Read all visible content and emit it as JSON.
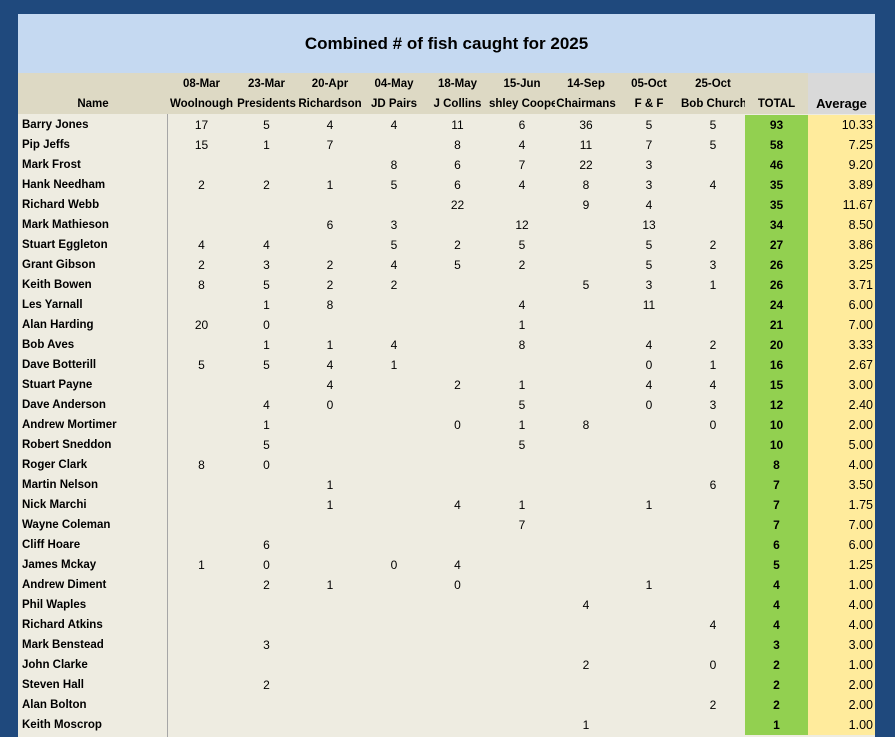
{
  "title": "Combined # of fish caught for 2025",
  "table": {
    "dates": [
      "08-Mar",
      "23-Mar",
      "20-Apr",
      "04-May",
      "18-May",
      "15-Jun",
      "14-Sep",
      "05-Oct",
      "25-Oct"
    ],
    "events": [
      "Woolnough",
      "Presidents",
      "Richardson",
      "JD Pairs",
      "J Collins",
      "shley Coope",
      "Chairmans",
      "F & F",
      "Bob Church"
    ],
    "name_header": "Name",
    "total_header": "TOTAL",
    "average_header": "Average",
    "rows": [
      {
        "name": "Barry Jones",
        "scores": [
          17,
          5,
          4,
          4,
          11,
          6,
          36,
          5,
          5
        ],
        "total": 93,
        "average": "10.33"
      },
      {
        "name": "Pip Jeffs",
        "scores": [
          15,
          1,
          7,
          null,
          8,
          4,
          11,
          7,
          5
        ],
        "total": 58,
        "average": "7.25"
      },
      {
        "name": "Mark Frost",
        "scores": [
          null,
          null,
          null,
          8,
          6,
          7,
          22,
          3,
          null
        ],
        "total": 46,
        "average": "9.20"
      },
      {
        "name": "Hank Needham",
        "scores": [
          2,
          2,
          1,
          5,
          6,
          4,
          8,
          3,
          4
        ],
        "total": 35,
        "average": "3.89"
      },
      {
        "name": "Richard Webb",
        "scores": [
          null,
          null,
          null,
          null,
          22,
          null,
          9,
          4,
          null
        ],
        "total": 35,
        "average": "11.67"
      },
      {
        "name": "Mark Mathieson",
        "scores": [
          null,
          null,
          6,
          3,
          null,
          12,
          null,
          13,
          null
        ],
        "total": 34,
        "average": "8.50"
      },
      {
        "name": "Stuart Eggleton",
        "scores": [
          4,
          4,
          null,
          5,
          2,
          5,
          null,
          5,
          2
        ],
        "total": 27,
        "average": "3.86"
      },
      {
        "name": "Grant Gibson",
        "scores": [
          2,
          3,
          2,
          4,
          5,
          2,
          null,
          5,
          3
        ],
        "total": 26,
        "average": "3.25"
      },
      {
        "name": "Keith Bowen",
        "scores": [
          8,
          5,
          2,
          2,
          null,
          null,
          5,
          3,
          1
        ],
        "total": 26,
        "average": "3.71"
      },
      {
        "name": "Les Yarnall",
        "scores": [
          null,
          1,
          8,
          null,
          null,
          4,
          null,
          11,
          null
        ],
        "total": 24,
        "average": "6.00"
      },
      {
        "name": "Alan Harding",
        "scores": [
          20,
          0,
          null,
          null,
          null,
          1,
          null,
          null,
          null
        ],
        "total": 21,
        "average": "7.00"
      },
      {
        "name": "Bob Aves",
        "scores": [
          null,
          1,
          1,
          4,
          null,
          8,
          null,
          4,
          2
        ],
        "total": 20,
        "average": "3.33"
      },
      {
        "name": "Dave Botterill",
        "scores": [
          5,
          5,
          4,
          1,
          null,
          null,
          null,
          0,
          1
        ],
        "total": 16,
        "average": "2.67"
      },
      {
        "name": "Stuart Payne",
        "scores": [
          null,
          null,
          4,
          null,
          2,
          1,
          null,
          4,
          4
        ],
        "total": 15,
        "average": "3.00"
      },
      {
        "name": "Dave Anderson",
        "scores": [
          null,
          4,
          0,
          null,
          null,
          5,
          null,
          0,
          3
        ],
        "total": 12,
        "average": "2.40"
      },
      {
        "name": "Andrew Mortimer",
        "scores": [
          null,
          1,
          null,
          null,
          0,
          1,
          8,
          null,
          0
        ],
        "total": 10,
        "average": "2.00"
      },
      {
        "name": "Robert Sneddon",
        "scores": [
          null,
          5,
          null,
          null,
          null,
          5,
          null,
          null,
          null
        ],
        "total": 10,
        "average": "5.00"
      },
      {
        "name": "Roger Clark",
        "scores": [
          8,
          0,
          null,
          null,
          null,
          null,
          null,
          null,
          null
        ],
        "total": 8,
        "average": "4.00"
      },
      {
        "name": "Martin Nelson",
        "scores": [
          null,
          null,
          1,
          null,
          null,
          null,
          null,
          null,
          6
        ],
        "total": 7,
        "average": "3.50"
      },
      {
        "name": "Nick Marchi",
        "scores": [
          null,
          null,
          1,
          null,
          4,
          1,
          null,
          1,
          null
        ],
        "total": 7,
        "average": "1.75"
      },
      {
        "name": "Wayne Coleman",
        "scores": [
          null,
          null,
          null,
          null,
          null,
          7,
          null,
          null,
          null
        ],
        "total": 7,
        "average": "7.00"
      },
      {
        "name": "Cliff Hoare",
        "scores": [
          null,
          6,
          null,
          null,
          null,
          null,
          null,
          null,
          null
        ],
        "total": 6,
        "average": "6.00"
      },
      {
        "name": "James Mckay",
        "scores": [
          1,
          0,
          null,
          0,
          4,
          null,
          null,
          null,
          null
        ],
        "total": 5,
        "average": "1.25"
      },
      {
        "name": "Andrew Diment",
        "scores": [
          null,
          2,
          1,
          null,
          0,
          null,
          null,
          1,
          null
        ],
        "total": 4,
        "average": "1.00"
      },
      {
        "name": "Phil Waples",
        "scores": [
          null,
          null,
          null,
          null,
          null,
          null,
          4,
          null,
          null
        ],
        "total": 4,
        "average": "4.00"
      },
      {
        "name": "Richard Atkins",
        "scores": [
          null,
          null,
          null,
          null,
          null,
          null,
          null,
          null,
          4
        ],
        "total": 4,
        "average": "4.00"
      },
      {
        "name": "Mark Benstead",
        "scores": [
          null,
          3,
          null,
          null,
          null,
          null,
          null,
          null,
          null
        ],
        "total": 3,
        "average": "3.00"
      },
      {
        "name": "John Clarke",
        "scores": [
          null,
          null,
          null,
          null,
          null,
          null,
          2,
          null,
          0
        ],
        "total": 2,
        "average": "1.00"
      },
      {
        "name": "Steven Hall",
        "scores": [
          null,
          2,
          null,
          null,
          null,
          null,
          null,
          null,
          null
        ],
        "total": 2,
        "average": "2.00"
      },
      {
        "name": "Alan Bolton",
        "scores": [
          null,
          null,
          null,
          null,
          null,
          null,
          null,
          null,
          2
        ],
        "total": 2,
        "average": "2.00"
      },
      {
        "name": "Keith Moscrop",
        "scores": [
          null,
          null,
          null,
          null,
          null,
          null,
          1,
          null,
          null
        ],
        "total": 1,
        "average": "1.00"
      }
    ]
  }
}
